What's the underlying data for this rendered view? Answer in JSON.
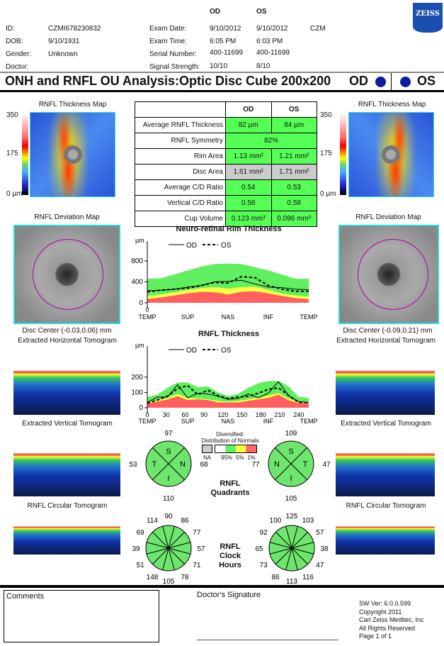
{
  "header": {
    "od": "OD",
    "os": "OS",
    "id_label": "ID:",
    "id": "CZMI678230832",
    "dob_label": "DOB:",
    "dob": "9/10/1931",
    "gender_label": "Gender:",
    "gender": "Unknown",
    "doctor_label": "Doctor:",
    "exam_date_label": "Exam Date:",
    "exam_date_od": "9/10/2012",
    "exam_date_os": "9/10/2012",
    "operator": "CZM",
    "exam_time_label": "Exam Time:",
    "exam_time_od": "6:05 PM",
    "exam_time_os": "6:03 PM",
    "serial_label": "Serial Number:",
    "serial_od": "400-11699",
    "serial_os": "400-11699",
    "signal_label": "Signal Strength:",
    "signal_od": "10/10",
    "signal_os": "8/10",
    "logo": "ZEISS"
  },
  "title": {
    "text": "ONH and RNFL OU Analysis:Optic Disc Cube 200x200",
    "od": "OD",
    "os": "OS",
    "eye_color": "#0b1ea0"
  },
  "maps": {
    "thickness_title": "RNFL Thickness Map",
    "scale_max": "350",
    "scale_mid": "175",
    "scale_min": "0 µm",
    "deviation_title": "RNFL Deviation Map",
    "od_disc_center": "Disc Center  (-0.03,0.06) mm",
    "os_disc_center": "Disc Center  (-0.09,0.21) mm",
    "horizontal_title": "Extracted Horizontal Tomogram",
    "vertical_title": "Extracted Vertical Tomogram",
    "circular_title": "RNFL Circular Tomogram"
  },
  "table": {
    "head": [
      "",
      "OD",
      "OS"
    ],
    "rows": [
      {
        "label": "Average RNFL Thickness",
        "od": "82 µm",
        "os": "84 µm"
      },
      {
        "label": "RNFL Symmetry",
        "both": "82%"
      },
      {
        "label": "Rim Area",
        "od": "1.13 mm²",
        "os": "1.21 mm²"
      },
      {
        "label": "Disc Area",
        "od": "1.61 mm²",
        "os": "1.71 mm²"
      },
      {
        "label": "Average C/D Ratio",
        "od": "0.54",
        "os": "0.53"
      },
      {
        "label": "Vertical C/D Ratio",
        "od": "0.58",
        "os": "0.58"
      },
      {
        "label": "Cup Volume",
        "od": "0.123 mm³",
        "os": "0.096 mm³"
      }
    ]
  },
  "chart_data": [
    {
      "type": "line",
      "title": "Neuro-retinal Rim Thickness",
      "ylabel": "µm",
      "ylim": [
        0,
        800
      ],
      "yticks": [
        "0",
        "400",
        "800"
      ],
      "x_start_label": "0",
      "xticks": [
        "TEMP",
        "SUP",
        "NAS",
        "INF",
        "TEMP"
      ],
      "legend": [
        "OD",
        "OS"
      ],
      "series": [
        {
          "name": "OD",
          "values": [
            230,
            240,
            260,
            300,
            330,
            400,
            410,
            430,
            360,
            300,
            290,
            260,
            250
          ]
        },
        {
          "name": "OS",
          "values": [
            210,
            240,
            260,
            280,
            330,
            390,
            380,
            500,
            480,
            330,
            260,
            220,
            220
          ]
        }
      ],
      "normative": {
        "p95": [
          460,
          470,
          540,
          620,
          690,
          740,
          750,
          740,
          680,
          620,
          540,
          460,
          460
        ],
        "p5": [
          130,
          160,
          200,
          250,
          280,
          300,
          270,
          300,
          310,
          250,
          180,
          140,
          120
        ],
        "p1": [
          70,
          100,
          140,
          180,
          210,
          200,
          160,
          210,
          220,
          180,
          130,
          90,
          70
        ]
      }
    },
    {
      "type": "line",
      "title": "RNFL Thickness",
      "ylabel": "µm",
      "ylim": [
        0,
        250
      ],
      "xlim": [
        0,
        256
      ],
      "yticks": [
        "0",
        "100",
        "200"
      ],
      "xticks": [
        "0",
        "30",
        "60",
        "90",
        "120",
        "150",
        "180",
        "210",
        "240"
      ],
      "xsectors": [
        "TEMP",
        "SUP",
        "NAS",
        "INF",
        "TEMP"
      ],
      "legend": [
        "OD",
        "OS"
      ],
      "x": [
        0,
        16,
        32,
        48,
        64,
        80,
        96,
        112,
        128,
        144,
        160,
        176,
        192,
        208,
        224,
        240,
        256
      ],
      "series": [
        {
          "name": "OD",
          "values": [
            35,
            70,
            70,
            150,
            65,
            95,
            90,
            75,
            55,
            60,
            90,
            65,
            95,
            170,
            80,
            40,
            35
          ]
        },
        {
          "name": "OS",
          "values": [
            30,
            50,
            75,
            125,
            145,
            85,
            115,
            80,
            60,
            70,
            75,
            95,
            120,
            130,
            80,
            35,
            35
          ]
        }
      ],
      "normative": {
        "p95": [
          70,
          85,
          130,
          165,
          165,
          135,
          140,
          100,
          75,
          90,
          130,
          160,
          175,
          175,
          140,
          70,
          65
        ],
        "p5": [
          35,
          50,
          65,
          90,
          65,
          60,
          55,
          45,
          40,
          45,
          55,
          65,
          80,
          95,
          60,
          40,
          40
        ],
        "p1": [
          28,
          40,
          55,
          75,
          50,
          55,
          50,
          35,
          35,
          35,
          45,
          55,
          65,
          85,
          50,
          30,
          30
        ]
      }
    }
  ],
  "legend": {
    "title1": "Diversified:",
    "title2": "Distribution of Normals",
    "na": "NA",
    "p95": "95%",
    "p5": "5%",
    "p1": "1%",
    "colors": {
      "na": "#cccccc",
      "white": "#ffffff",
      "green": "#5fef5f",
      "yellow": "#ffff44",
      "red": "#ff5f5f"
    }
  },
  "quadrants": {
    "label1": "RNFL",
    "label2": "Quadrants",
    "od": {
      "S": "97",
      "T": "53",
      "N": "68",
      "I": "110"
    },
    "os": {
      "S": "109",
      "N": "77",
      "T": "47",
      "I": "105"
    }
  },
  "clock": {
    "label1": "RNFL",
    "label2": "Clock",
    "label3": "Hours",
    "od": [
      "90",
      "86",
      "77",
      "57",
      "71",
      "78",
      "105",
      "148",
      "51",
      "39",
      "69",
      "114"
    ],
    "os": [
      "125",
      "103",
      "57",
      "38",
      "47",
      "116",
      "113",
      "86",
      "73",
      "65",
      "92",
      "100"
    ]
  },
  "footer": {
    "comments": "Comments",
    "signature": "Doctor's Signature",
    "sw": "SW Ver: 6.0.0.599",
    "copyright": "Copyright 2011",
    "company": "Carl Zeiss Meditec, Inc",
    "rights": "All Rights Reserved",
    "page": "Page 1 of 1"
  }
}
